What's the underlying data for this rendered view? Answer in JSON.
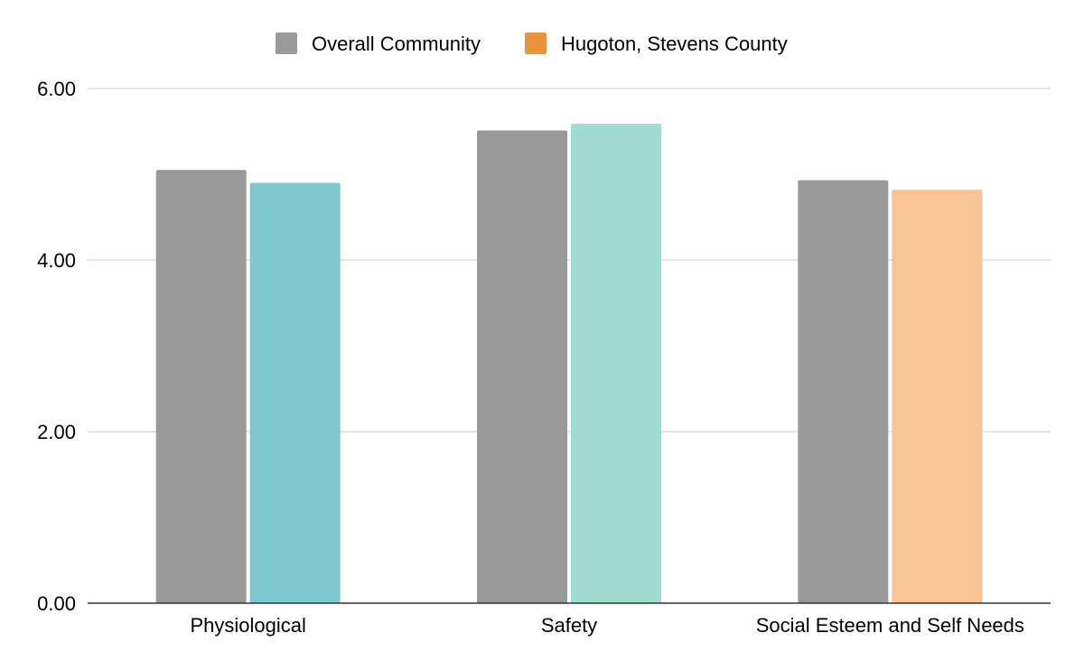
{
  "chart_data": {
    "type": "bar",
    "title": "",
    "xlabel": "",
    "ylabel": "",
    "ylim": [
      0,
      6
    ],
    "yticks": [
      "0.00",
      "2.00",
      "4.00",
      "6.00"
    ],
    "grid": true,
    "legend_position": "top-center",
    "categories": [
      "Physiological",
      "Safety",
      "Social Esteem and Self Needs"
    ],
    "series": [
      {
        "name": "Overall Community",
        "legend_color": "#999999",
        "values": [
          5.05,
          5.51,
          4.93
        ],
        "colors": [
          "#999999",
          "#999999",
          "#999999"
        ]
      },
      {
        "name": "Hugoton, Stevens County",
        "legend_color": "#E8943A",
        "values": [
          4.9,
          5.59,
          4.82
        ],
        "colors": [
          "#7FC7CE",
          "#A2DCD1",
          "#F9C398"
        ]
      }
    ]
  }
}
